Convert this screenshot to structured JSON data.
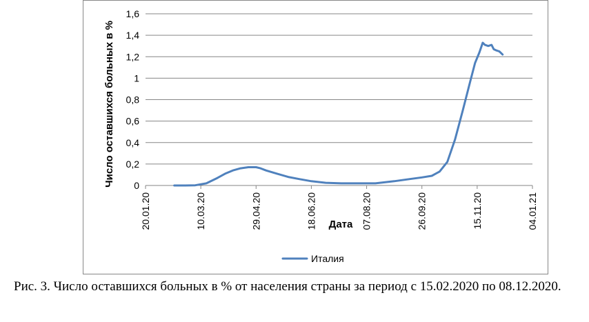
{
  "caption": "Рис. 3. Число оставшихся больных в % от населения страны за период с 15.02.2020 по 08.12.2020.",
  "chart_data": {
    "type": "line",
    "title": "",
    "xlabel": "Дата",
    "ylabel": "Число оставшихся больных в %",
    "x_tick_labels": [
      "20.01.20",
      "10.03.20",
      "29.04.20",
      "18.06.20",
      "07.08.20",
      "26.09.20",
      "15.11.20",
      "04.01.21"
    ],
    "x_range": [
      "20.01.20",
      "04.01.21"
    ],
    "y_tick_labels": [
      "0",
      "0,2",
      "0,4",
      "0,6",
      "0,8",
      "1",
      "1,2",
      "1,4",
      "1,6"
    ],
    "ylim": [
      0,
      1.6
    ],
    "grid": "horizontal",
    "legend_position": "bottom",
    "series": [
      {
        "name": "Италия",
        "color": "#4f81bd",
        "x": [
          "15.02.20",
          "25.02.20",
          "05.03.20",
          "15.03.20",
          "25.03.20",
          "01.04.20",
          "08.04.20",
          "15.04.20",
          "22.04.20",
          "29.04.20",
          "03.05.20",
          "08.05.20",
          "18.05.20",
          "28.05.20",
          "07.06.20",
          "18.06.20",
          "01.07.20",
          "15.07.20",
          "01.08.20",
          "15.08.20",
          "01.09.20",
          "15.09.20",
          "26.09.20",
          "05.10.20",
          "12.10.20",
          "19.10.20",
          "26.10.20",
          "02.11.20",
          "09.11.20",
          "13.11.20",
          "17.11.20",
          "20.11.20",
          "22.11.20",
          "25.11.20",
          "28.11.20",
          "30.11.20",
          "02.12.20",
          "05.12.20",
          "08.12.20"
        ],
        "y": [
          0,
          0,
          0.002,
          0.02,
          0.07,
          0.11,
          0.14,
          0.16,
          0.17,
          0.17,
          0.16,
          0.14,
          0.11,
          0.08,
          0.06,
          0.04,
          0.025,
          0.02,
          0.02,
          0.02,
          0.04,
          0.06,
          0.075,
          0.09,
          0.13,
          0.22,
          0.43,
          0.7,
          0.98,
          1.14,
          1.24,
          1.33,
          1.31,
          1.3,
          1.31,
          1.27,
          1.26,
          1.25,
          1.22
        ]
      }
    ]
  }
}
